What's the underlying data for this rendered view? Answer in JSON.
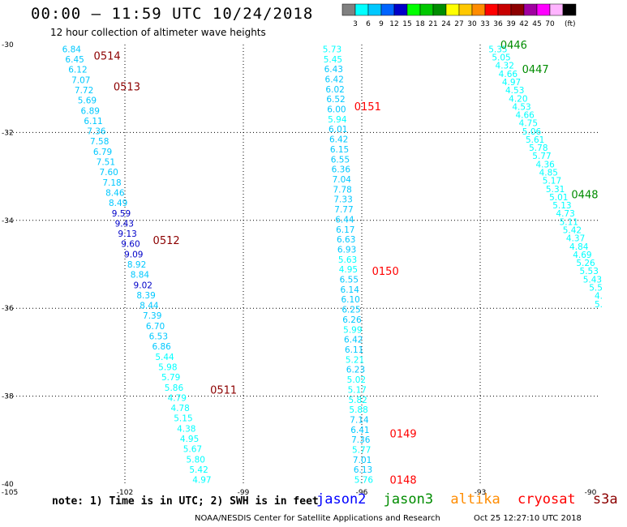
{
  "header": {
    "title": "00:00 – 11:59 UTC 10/24/2018",
    "subtitle": "12 hour collection of altimeter wave heights"
  },
  "scale": {
    "unit": "(ft)",
    "bins": [
      {
        "label": "",
        "color": "#808080"
      },
      {
        "label": "3",
        "color": "#00ffff"
      },
      {
        "label": "6",
        "color": "#00c8ff"
      },
      {
        "label": "9",
        "color": "#0064ff"
      },
      {
        "label": "12",
        "color": "#0000c8"
      },
      {
        "label": "15",
        "color": "#00ff00"
      },
      {
        "label": "18",
        "color": "#00c800"
      },
      {
        "label": "21",
        "color": "#008c00"
      },
      {
        "label": "24",
        "color": "#ffff00"
      },
      {
        "label": "27",
        "color": "#ffc800"
      },
      {
        "label": "30",
        "color": "#ff8c00"
      },
      {
        "label": "33",
        "color": "#ff0000"
      },
      {
        "label": "36",
        "color": "#c80000"
      },
      {
        "label": "39",
        "color": "#8c0000"
      },
      {
        "label": "42",
        "color": "#a000a0"
      },
      {
        "label": "45",
        "color": "#ff00ff"
      },
      {
        "label": "70",
        "color": "#ffb4ff"
      },
      {
        "label": "",
        "color": "#000000"
      }
    ]
  },
  "footer": {
    "note": "note: 1) Time is in UTC; 2) SWH is in feet",
    "missions": [
      {
        "name": "jason2",
        "color": "#0000ff"
      },
      {
        "name": "jason3",
        "color": "#008c00"
      },
      {
        "name": "altika",
        "color": "#ff8c00"
      },
      {
        "name": "cryosat",
        "color": "#ff0000"
      },
      {
        "name": "s3a",
        "color": "#8c0000"
      }
    ],
    "credit": "NOAA/NESDIS Center for Satellite Applications and Research",
    "timestamp": "Oct 25 12:27:10 UTC 2018"
  },
  "chart_data": {
    "type": "scatter",
    "title": "12 hour collection of altimeter wave heights",
    "xlim": [
      -105,
      -90
    ],
    "ylim": [
      -40,
      -30
    ],
    "x_ticks": [
      "-105",
      "-102",
      "-99",
      "-96",
      "-93",
      "-90"
    ],
    "y_ticks": [
      "-30",
      "-32",
      "-34",
      "-36",
      "-38",
      "-40"
    ],
    "grid": true,
    "units": "ft",
    "tracks": [
      {
        "x_start": -103.35,
        "y_start": -30.1,
        "x_end": -100.05,
        "y_end": -39.9,
        "points": [
          {
            "v": "6.84",
            "c": "#00c8ff"
          },
          {
            "v": "6.45",
            "c": "#00c8ff"
          },
          {
            "v": "6.12",
            "c": "#00c8ff"
          },
          {
            "v": "7.07",
            "c": "#00c8ff"
          },
          {
            "v": "7.72",
            "c": "#00c8ff"
          },
          {
            "v": "5.69",
            "c": "#00c8ff"
          },
          {
            "v": "6.89",
            "c": "#00c8ff"
          },
          {
            "v": "6.11",
            "c": "#00c8ff"
          },
          {
            "v": "7.36",
            "c": "#00c8ff"
          },
          {
            "v": "7.58",
            "c": "#00c8ff"
          },
          {
            "v": "6.79",
            "c": "#00c8ff"
          },
          {
            "v": "7.51",
            "c": "#00c8ff"
          },
          {
            "v": "7.60",
            "c": "#00c8ff"
          },
          {
            "v": "7.18",
            "c": "#00c8ff"
          },
          {
            "v": "8.46",
            "c": "#00c8ff"
          },
          {
            "v": "8.49",
            "c": "#00c8ff"
          },
          {
            "v": "9.59",
            "c": "#0000c8"
          },
          {
            "v": "9.43",
            "c": "#0000c8"
          },
          {
            "v": "9.13",
            "c": "#0000c8"
          },
          {
            "v": "9.60",
            "c": "#0000c8"
          },
          {
            "v": "9.09",
            "c": "#0000c8"
          },
          {
            "v": "8.92",
            "c": "#00c8ff"
          },
          {
            "v": "8.84",
            "c": "#00c8ff"
          },
          {
            "v": "9.02",
            "c": "#0000c8"
          },
          {
            "v": "8.39",
            "c": "#00c8ff"
          },
          {
            "v": "8.44",
            "c": "#00c8ff"
          },
          {
            "v": "7.39",
            "c": "#00c8ff"
          },
          {
            "v": "6.70",
            "c": "#00c8ff"
          },
          {
            "v": "6.53",
            "c": "#00c8ff"
          },
          {
            "v": "6.86",
            "c": "#00c8ff"
          },
          {
            "v": "5.44",
            "c": "#00ffff"
          },
          {
            "v": "5.98",
            "c": "#00ffff"
          },
          {
            "v": "5.79",
            "c": "#00ffff"
          },
          {
            "v": "5.86",
            "c": "#00ffff"
          },
          {
            "v": "4.79",
            "c": "#00ffff"
          },
          {
            "v": "4.78",
            "c": "#00ffff"
          },
          {
            "v": "5.15",
            "c": "#00ffff"
          },
          {
            "v": "4.38",
            "c": "#00ffff"
          },
          {
            "v": "4.95",
            "c": "#00ffff"
          },
          {
            "v": "5.67",
            "c": "#00ffff"
          },
          {
            "v": "5.80",
            "c": "#00ffff"
          },
          {
            "v": "5.42",
            "c": "#00ffff"
          },
          {
            "v": "4.97",
            "c": "#00ffff"
          }
        ]
      },
      {
        "x_start": -96.75,
        "y_start": -30.1,
        "x_end": -95.95,
        "y_end": -39.9,
        "points": [
          {
            "v": "5.73",
            "c": "#00ffff"
          },
          {
            "v": "5.45",
            "c": "#00ffff"
          },
          {
            "v": "6.43",
            "c": "#00c8ff"
          },
          {
            "v": "6.42",
            "c": "#00c8ff"
          },
          {
            "v": "6.02",
            "c": "#00c8ff"
          },
          {
            "v": "6.52",
            "c": "#00c8ff"
          },
          {
            "v": "6.00",
            "c": "#00c8ff"
          },
          {
            "v": "5.94",
            "c": "#00ffff"
          },
          {
            "v": "6.01",
            "c": "#00c8ff"
          },
          {
            "v": "6.42",
            "c": "#00c8ff"
          },
          {
            "v": "6.15",
            "c": "#00c8ff"
          },
          {
            "v": "6.55",
            "c": "#00c8ff"
          },
          {
            "v": "6.36",
            "c": "#00c8ff"
          },
          {
            "v": "7.04",
            "c": "#00c8ff"
          },
          {
            "v": "7.78",
            "c": "#00c8ff"
          },
          {
            "v": "7.33",
            "c": "#00c8ff"
          },
          {
            "v": "7.77",
            "c": "#00c8ff"
          },
          {
            "v": "6.44",
            "c": "#00c8ff"
          },
          {
            "v": "6.17",
            "c": "#00c8ff"
          },
          {
            "v": "6.63",
            "c": "#00c8ff"
          },
          {
            "v": "6.93",
            "c": "#00c8ff"
          },
          {
            "v": "5.63",
            "c": "#00ffff"
          },
          {
            "v": "4.95",
            "c": "#00ffff"
          },
          {
            "v": "6.55",
            "c": "#00c8ff"
          },
          {
            "v": "6.14",
            "c": "#00c8ff"
          },
          {
            "v": "6.10",
            "c": "#00c8ff"
          },
          {
            "v": "6.25",
            "c": "#00c8ff"
          },
          {
            "v": "6.26",
            "c": "#00c8ff"
          },
          {
            "v": "5.99",
            "c": "#00ffff"
          },
          {
            "v": "6.42",
            "c": "#00c8ff"
          },
          {
            "v": "6.11",
            "c": "#00c8ff"
          },
          {
            "v": "5.21",
            "c": "#00ffff"
          },
          {
            "v": "6.23",
            "c": "#00c8ff"
          },
          {
            "v": "5.02",
            "c": "#00ffff"
          },
          {
            "v": "5.17",
            "c": "#00ffff"
          },
          {
            "v": "5.82",
            "c": "#00ffff"
          },
          {
            "v": "5.88",
            "c": "#00ffff"
          },
          {
            "v": "7.14",
            "c": "#00c8ff"
          },
          {
            "v": "6.41",
            "c": "#00c8ff"
          },
          {
            "v": "7.36",
            "c": "#00c8ff"
          },
          {
            "v": "5.77",
            "c": "#00ffff"
          },
          {
            "v": "7.01",
            "c": "#00c8ff"
          },
          {
            "v": "6.13",
            "c": "#00c8ff"
          },
          {
            "v": "5.76",
            "c": "#00ffff"
          }
        ]
      },
      {
        "x_start": -92.55,
        "y_start": -30.1,
        "x_end": -89.9,
        "y_end": -35.9,
        "points": [
          {
            "v": "5.35",
            "c": "#00ffff"
          },
          {
            "v": "5.05",
            "c": "#00ffff"
          },
          {
            "v": "4.32",
            "c": "#00ffff"
          },
          {
            "v": "4.66",
            "c": "#00ffff"
          },
          {
            "v": "4.97",
            "c": "#00ffff"
          },
          {
            "v": "4.53",
            "c": "#00ffff"
          },
          {
            "v": "4.20",
            "c": "#00ffff"
          },
          {
            "v": "4.53",
            "c": "#00ffff"
          },
          {
            "v": "4.66",
            "c": "#00ffff"
          },
          {
            "v": "4.75",
            "c": "#00ffff"
          },
          {
            "v": "5.06",
            "c": "#00ffff"
          },
          {
            "v": "5.61",
            "c": "#00ffff"
          },
          {
            "v": "5.78",
            "c": "#00ffff"
          },
          {
            "v": "5.77",
            "c": "#00ffff"
          },
          {
            "v": "4.36",
            "c": "#00ffff"
          },
          {
            "v": "4.85",
            "c": "#00ffff"
          },
          {
            "v": "5.17",
            "c": "#00ffff"
          },
          {
            "v": "5.31",
            "c": "#00ffff"
          },
          {
            "v": "5.01",
            "c": "#00ffff"
          },
          {
            "v": "5.13",
            "c": "#00ffff"
          },
          {
            "v": "4.73",
            "c": "#00ffff"
          },
          {
            "v": "5.11",
            "c": "#00ffff"
          },
          {
            "v": "5.42",
            "c": "#00ffff"
          },
          {
            "v": "4.37",
            "c": "#00ffff"
          },
          {
            "v": "4.84",
            "c": "#00ffff"
          },
          {
            "v": "4.69",
            "c": "#00ffff"
          },
          {
            "v": "5.26",
            "c": "#00ffff"
          },
          {
            "v": "5.53",
            "c": "#00ffff"
          },
          {
            "v": "5.43",
            "c": "#00ffff"
          },
          {
            "v": "5.5",
            "c": "#00ffff"
          },
          {
            "v": "4.",
            "c": "#00ffff"
          },
          {
            "v": "5.",
            "c": "#00ffff"
          }
        ]
      }
    ],
    "time_labels": [
      {
        "text": "0514",
        "x": -102.45,
        "y": -30.25,
        "color": "#8c0000"
      },
      {
        "text": "0513",
        "x": -101.95,
        "y": -30.95,
        "color": "#8c0000"
      },
      {
        "text": "0512",
        "x": -100.95,
        "y": -34.45,
        "color": "#8c0000"
      },
      {
        "text": "0511",
        "x": -99.5,
        "y": -37.85,
        "color": "#8c0000"
      },
      {
        "text": "0151",
        "x": -95.85,
        "y": -31.4,
        "color": "#ff0000"
      },
      {
        "text": "0150",
        "x": -95.4,
        "y": -35.15,
        "color": "#ff0000"
      },
      {
        "text": "0149",
        "x": -94.95,
        "y": -38.85,
        "color": "#ff0000"
      },
      {
        "text": "0148",
        "x": -94.95,
        "y": -39.9,
        "color": "#ff0000"
      },
      {
        "text": "0446",
        "x": -92.15,
        "y": -30.0,
        "color": "#008c00"
      },
      {
        "text": "0447",
        "x": -91.6,
        "y": -30.55,
        "color": "#008c00"
      },
      {
        "text": "0448",
        "x": -90.35,
        "y": -33.4,
        "color": "#008c00"
      }
    ]
  }
}
